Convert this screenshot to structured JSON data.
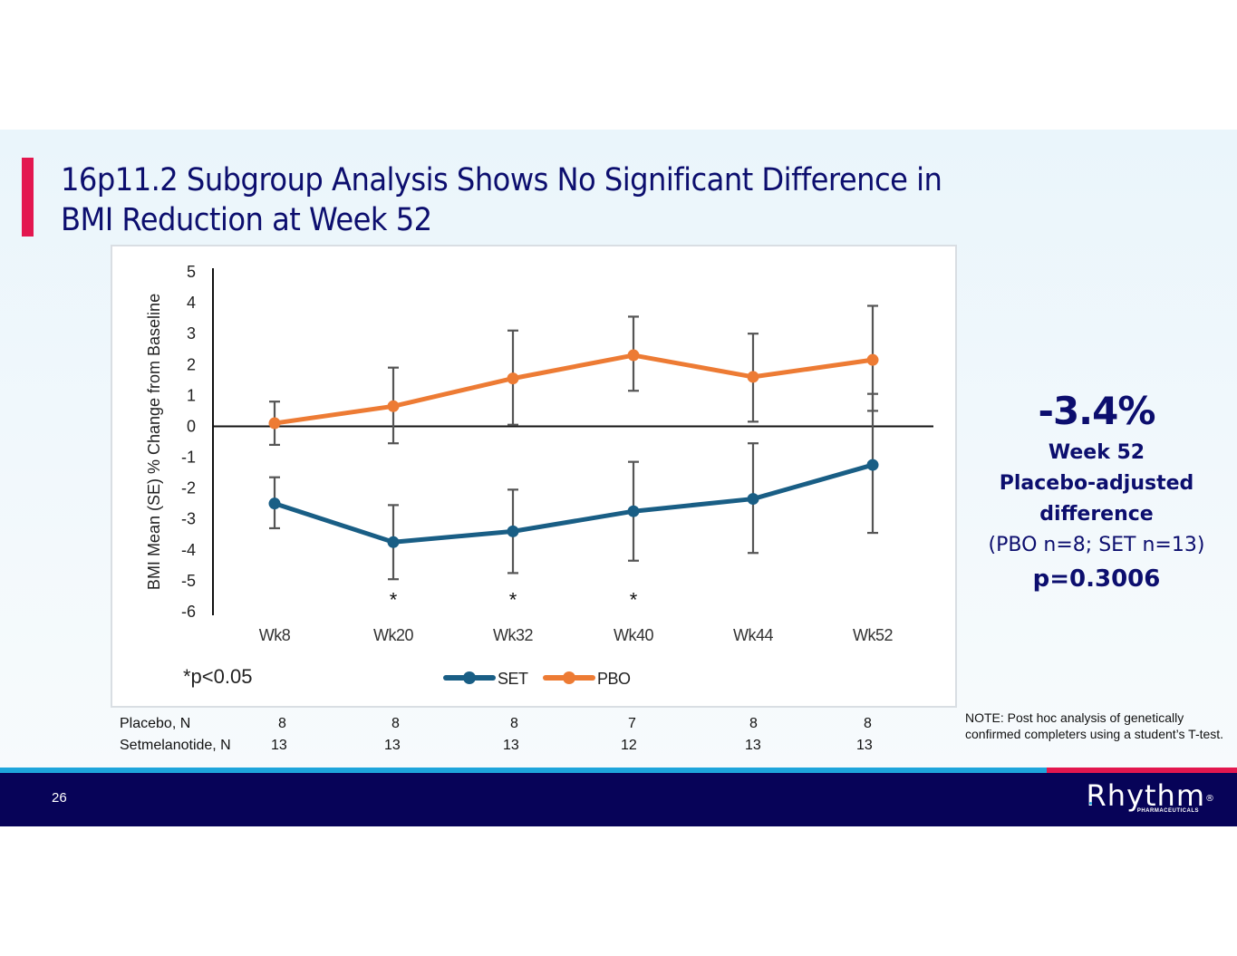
{
  "slide": {
    "title": "16p11.2 Subgroup Analysis Shows No Significant Difference in BMI Reduction at Week 52",
    "page_number": "26",
    "brand": {
      "name": "Rhythm",
      "registered": "®",
      "tagline": "PHARMACEUTICALS"
    },
    "colors": {
      "title": "#0c0e6e",
      "accent": "#e3174f",
      "footer_bg": "#070358",
      "stripe_blue": "#1ea5dc",
      "set": "#195e85",
      "pbo": "#ed7b34"
    }
  },
  "stats": {
    "value": "-3.4%",
    "line1": "Week 52",
    "line2": "Placebo-adjusted",
    "line3": "difference",
    "line4": "(PBO n=8; SET n=13)",
    "pvalue": "p=0.3006"
  },
  "note": "NOTE: Post hoc analysis of genetically confirmed completers using a student’s T-test.",
  "n_table": {
    "rows": [
      {
        "label": "Placebo, N",
        "values": [
          "8",
          "8",
          "8",
          "7",
          "8",
          "8"
        ]
      },
      {
        "label": "Setmelanotide, N",
        "values": [
          "13",
          "13",
          "13",
          "12",
          "13",
          "13"
        ]
      }
    ]
  },
  "chart_data": {
    "type": "line",
    "title": "",
    "xlabel": "",
    "ylabel": "BMI Mean (SE) % Change from Baseline",
    "categories": [
      "Wk8",
      "Wk20",
      "Wk32",
      "Wk40",
      "Wk44",
      "Wk52"
    ],
    "ylim": [
      -6,
      5
    ],
    "yticks": [
      "5",
      "4",
      "3",
      "2",
      "1",
      "0",
      "-1",
      "-2",
      "-3",
      "-4",
      "-5",
      "-6"
    ],
    "grid": false,
    "legend_position": "bottom-center",
    "footnote": "*p<0.05",
    "significance_marks": [
      "",
      "*",
      "*",
      "*",
      "",
      ""
    ],
    "series": [
      {
        "name": "SET",
        "color": "#195e85",
        "values": [
          -2.5,
          -3.75,
          -3.4,
          -2.75,
          -2.35,
          -1.25
        ],
        "error_low": [
          -3.3,
          -4.95,
          -4.75,
          -4.35,
          -4.1,
          -3.45
        ],
        "error_high": [
          -1.65,
          -2.55,
          -2.05,
          -1.15,
          -0.55,
          1.05
        ]
      },
      {
        "name": "PBO",
        "color": "#ed7b34",
        "values": [
          0.1,
          0.65,
          1.55,
          2.3,
          1.6,
          2.15
        ],
        "error_low": [
          -0.6,
          -0.55,
          0.05,
          1.15,
          0.15,
          0.5
        ],
        "error_high": [
          0.8,
          1.9,
          3.1,
          3.55,
          3.0,
          3.9
        ]
      }
    ]
  }
}
